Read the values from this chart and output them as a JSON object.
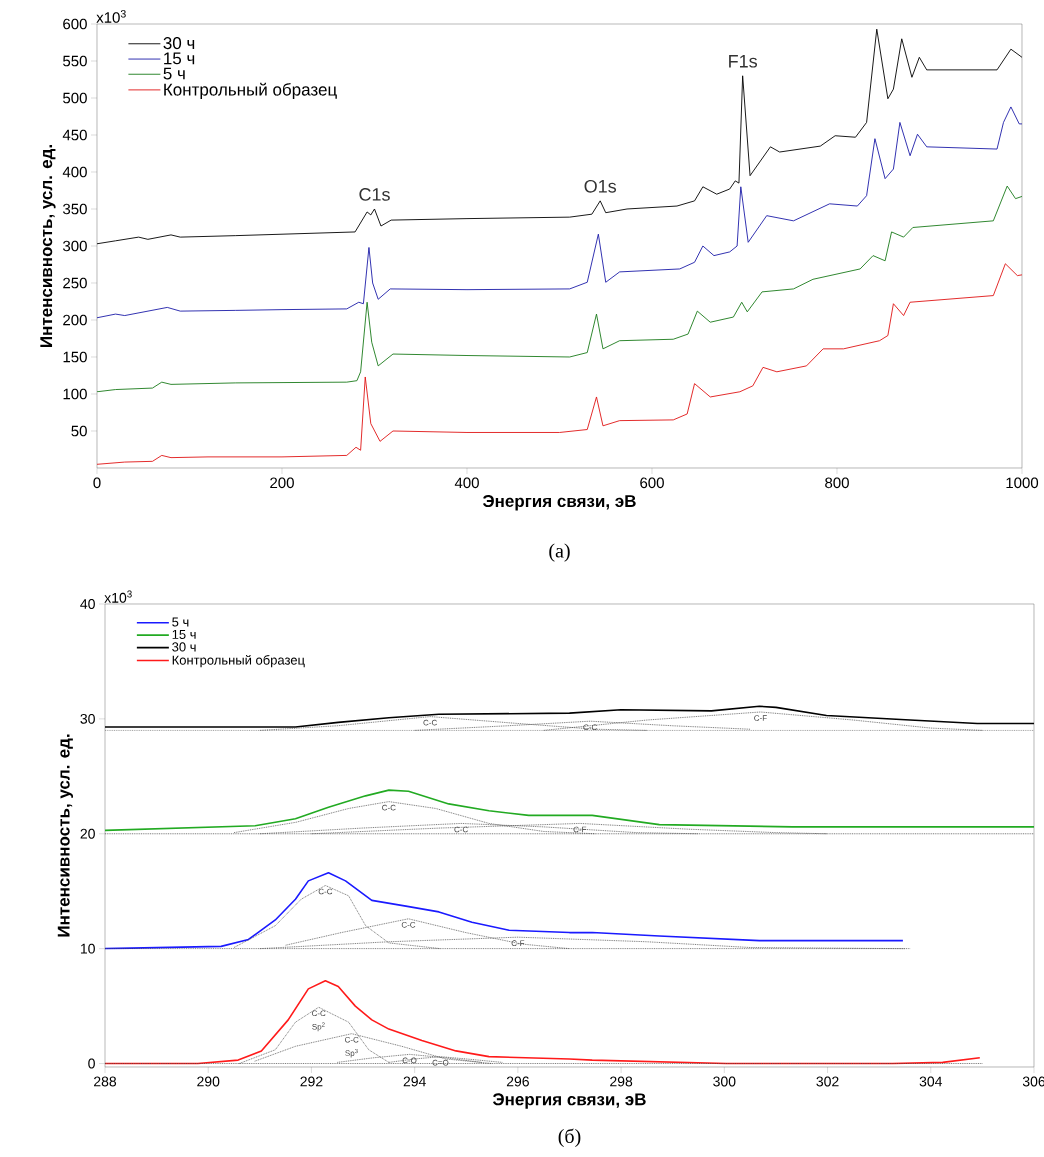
{
  "chart_data": [
    {
      "type": "line",
      "xlabel": "Энергия связи, эВ",
      "ylabel": "Интенсивность, усл. ед.",
      "xlim": [
        0,
        1000
      ],
      "ylim": [
        0,
        600
      ],
      "xticks": [
        0,
        200,
        400,
        600,
        800,
        1000
      ],
      "yticks": [
        50,
        100,
        150,
        200,
        250,
        300,
        350,
        400,
        450,
        500,
        550,
        600
      ],
      "legend": "top left",
      "line_style": "solid",
      "series": [
        {
          "name": "30 ч",
          "color": "#000000",
          "x": [
            0,
            20,
            45,
            55,
            80,
            90,
            150,
            279,
            292,
            296,
            300,
            307,
            318,
            400,
            511,
            535,
            544,
            550,
            573,
            627,
            646,
            655,
            670,
            684,
            690,
            694,
            698,
            706,
            728,
            738,
            782,
            798,
            820,
            832,
            843,
            855,
            861,
            870,
            881,
            889,
            897,
            973,
            988,
            1000
          ],
          "values": [
            303,
            307,
            312,
            309,
            315,
            312,
            314,
            319,
            346,
            342,
            350,
            327,
            335,
            337,
            339,
            343,
            361,
            345,
            350,
            354,
            361,
            380,
            370,
            377,
            388,
            385,
            530,
            395,
            434,
            427,
            435,
            449,
            447,
            467,
            593,
            499,
            512,
            580,
            528,
            555,
            538,
            538,
            566,
            555
          ]
        },
        {
          "name": "15 ч",
          "color": "#1c1ca8",
          "x": [
            0,
            20,
            30,
            76,
            90,
            150,
            200,
            270,
            283,
            288,
            294,
            298,
            304,
            317,
            400,
            511,
            530,
            542,
            550,
            565,
            630,
            646,
            655,
            667,
            684,
            692,
            696,
            704,
            724,
            753,
            792,
            822,
            832,
            841,
            852,
            861,
            868,
            879,
            887,
            897,
            973,
            980,
            988,
            997,
            1000
          ],
          "values": [
            203,
            208,
            206,
            217,
            212,
            213,
            214,
            215,
            224,
            222,
            298,
            250,
            228,
            242,
            241,
            242,
            251,
            316,
            251,
            265,
            269,
            278,
            300,
            287,
            292,
            300,
            380,
            305,
            341,
            334,
            357,
            354,
            368,
            445,
            391,
            404,
            467,
            422,
            451,
            434,
            431,
            467,
            488,
            465,
            465
          ]
        },
        {
          "name": "5 ч",
          "color": "#1a7a1a",
          "x": [
            0,
            20,
            60,
            70,
            80,
            150,
            270,
            281,
            285,
            292,
            297,
            304,
            320,
            400,
            511,
            530,
            540,
            547,
            565,
            623,
            639,
            649,
            663,
            688,
            697,
            703,
            719,
            753,
            774,
            825,
            839,
            852,
            859,
            872,
            882,
            969,
            984,
            993,
            1000
          ],
          "values": [
            103,
            106,
            108,
            116,
            113,
            115,
            116,
            118,
            130,
            224,
            170,
            138,
            154,
            152,
            150,
            156,
            208,
            161,
            172,
            174,
            181,
            212,
            197,
            204,
            224,
            211,
            238,
            242,
            255,
            269,
            287,
            280,
            319,
            312,
            325,
            334,
            381,
            364,
            367
          ]
        },
        {
          "name": "Контрольный образец",
          "color": "#e01414",
          "x": [
            0,
            30,
            60,
            70,
            80,
            120,
            200,
            270,
            280,
            285,
            290,
            296,
            306,
            320,
            400,
            500,
            530,
            540,
            547,
            565,
            623,
            638,
            646,
            663,
            695,
            709,
            720,
            735,
            767,
            785,
            807,
            846,
            855,
            861,
            872,
            879,
            969,
            982,
            995,
            1000
          ],
          "values": [
            5,
            8,
            9,
            17,
            14,
            15,
            15,
            17,
            28,
            24,
            123,
            60,
            36,
            50,
            48,
            48,
            52,
            96,
            57,
            64,
            65,
            73,
            114,
            96,
            103,
            111,
            136,
            130,
            138,
            161,
            161,
            172,
            179,
            222,
            206,
            224,
            233,
            276,
            260,
            261
          ]
        }
      ],
      "annotations": [
        {
          "text": "C1s",
          "x": 300,
          "y": 350
        },
        {
          "text": "O1s",
          "x": 544,
          "y": 361
        },
        {
          "text": "F1s",
          "x": 698,
          "y": 530
        },
        "x10$^{3}$",
        "(а)"
      ]
    },
    {
      "type": "line",
      "xlabel": "Энергия связи, эВ",
      "ylabel": "Интенсивность, усл. ед.",
      "xlim": [
        288,
        306
      ],
      "ylim": [
        -0.3,
        40
      ],
      "xticks": [
        288,
        290,
        292,
        294,
        296,
        298,
        300,
        302,
        304,
        306
      ],
      "yticks": [
        0,
        10,
        20,
        30,
        40
      ],
      "legend": "top left",
      "line_style": "solid",
      "series": [
        {
          "name": "5 ч",
          "color": "#1a1aff",
          "x": [
            288,
            290.25,
            290.78,
            291.3,
            291.69,
            291.94,
            292.33,
            292.66,
            293.17,
            293.83,
            294.47,
            295.11,
            295.83,
            297,
            297.44,
            298.74,
            300.68,
            303.46
          ],
          "values": [
            10.0,
            10.2,
            10.8,
            12.5,
            14.3,
            15.9,
            16.6,
            15.9,
            14.2,
            13.7,
            13.2,
            12.3,
            11.6,
            11.4,
            11.4,
            11.1,
            10.7,
            10.7
          ]
        },
        {
          "name": "15 ч",
          "color": "#22aa22",
          "x": [
            288,
            290.91,
            291.69,
            292.33,
            293.05,
            293.5,
            293.88,
            294.66,
            295.44,
            296.21,
            297,
            297.44,
            298.74,
            301.32,
            306
          ],
          "values": [
            20.3,
            20.7,
            21.3,
            22.3,
            23.3,
            23.8,
            23.7,
            22.6,
            22.0,
            21.6,
            21.6,
            21.6,
            20.8,
            20.6,
            20.6
          ]
        },
        {
          "name": "30 ч",
          "color": "#000000",
          "x": [
            288,
            291.69,
            292.52,
            293.5,
            294.47,
            297,
            298,
            299.75,
            300.68,
            301,
            301.98,
            303.6,
            304.9,
            306
          ],
          "values": [
            29.3,
            29.3,
            29.7,
            30.1,
            30.4,
            30.5,
            30.8,
            30.7,
            31.1,
            31.0,
            30.3,
            29.9,
            29.6,
            29.6
          ]
        },
        {
          "name": "Контрольный образец",
          "color": "#ff1a1a",
          "x": [
            288,
            289.8,
            290.58,
            291.03,
            291.55,
            291.94,
            292.27,
            292.52,
            292.85,
            293.17,
            293.5,
            294.14,
            294.8,
            295.44,
            297,
            297.44,
            300.04,
            303.26,
            304.23,
            304.95
          ],
          "values": [
            0.0,
            0.0,
            0.3,
            1.1,
            3.8,
            6.5,
            7.2,
            6.7,
            5.0,
            3.8,
            3.0,
            2.0,
            1.1,
            0.6,
            0.4,
            0.3,
            0.0,
            0.0,
            0.1,
            0.5
          ]
        },
        {
          "color": "#444444",
          "line_style": "dotted",
          "x": [
            288,
            303.6
          ],
          "values": [
            10,
            10
          ]
        },
        {
          "color": "#444444",
          "line_style": "dotted",
          "x": [
            290.5,
            291.3,
            291.8,
            292.27,
            292.72,
            293.05,
            293.5,
            294.5
          ],
          "values": [
            10.1,
            12.0,
            14.3,
            15.5,
            14.6,
            12.0,
            10.5,
            10.0
          ]
        },
        {
          "color": "#444444",
          "line_style": "dotted",
          "x": [
            291.5,
            292.58,
            293.88,
            294.99,
            296.08,
            297
          ],
          "values": [
            10.3,
            11.4,
            12.6,
            11.4,
            10.4,
            10.0
          ]
        },
        {
          "color": "#444444",
          "line_style": "dotted",
          "x": [
            291,
            293.5,
            296,
            298.5,
            300.5,
            303.5
          ],
          "values": [
            10.0,
            10.6,
            11.0,
            10.6,
            10.1,
            10.0
          ]
        },
        {
          "color": "#444444",
          "line_style": "dotted",
          "x": [
            288,
            306
          ],
          "values": [
            20,
            20
          ]
        },
        {
          "color": "#444444",
          "line_style": "dotted",
          "x": [
            290.5,
            291.7,
            292.72,
            293.5,
            294.41,
            295.44,
            296.5,
            297.5
          ],
          "values": [
            20.1,
            21.0,
            22.2,
            22.8,
            22.2,
            20.9,
            20.2,
            20.0
          ]
        },
        {
          "color": "#444444",
          "line_style": "dotted",
          "x": [
            291,
            293,
            294.9,
            296.5,
            298.3,
            299.5
          ],
          "values": [
            20.0,
            20.5,
            20.9,
            20.6,
            20.1,
            20.0
          ]
        },
        {
          "color": "#444444",
          "line_style": "dotted",
          "x": [
            292,
            294.5,
            297.2,
            299.3,
            301,
            302
          ],
          "values": [
            20.0,
            20.5,
            20.9,
            20.4,
            20.1,
            20.0
          ]
        },
        {
          "color": "#444444",
          "line_style": "dotted",
          "x": [
            288,
            306
          ],
          "values": [
            29,
            29
          ]
        },
        {
          "color": "#444444",
          "line_style": "dotted",
          "x": [
            291,
            292.5,
            294.3,
            296,
            297.5,
            298.5
          ],
          "values": [
            29.0,
            29.4,
            30.2,
            29.6,
            29.1,
            29.0
          ]
        },
        {
          "color": "#444444",
          "line_style": "dotted",
          "x": [
            294,
            295.8,
            297.4,
            299,
            300.5
          ],
          "values": [
            29.0,
            29.4,
            29.8,
            29.4,
            29.1
          ]
        },
        {
          "color": "#444444",
          "line_style": "dotted",
          "x": [
            296.5,
            298.5,
            300.7,
            302.5,
            304,
            305
          ],
          "values": [
            29.0,
            29.9,
            30.6,
            29.9,
            29.2,
            29.0
          ]
        },
        {
          "color": "#444444",
          "line_style": "dotted",
          "x": [
            288,
            305
          ],
          "values": [
            0,
            0
          ]
        },
        {
          "color": "#444444",
          "line_style": "dotted",
          "x": [
            290.6,
            291.3,
            291.69,
            292.14,
            292.72,
            293.11,
            293.5
          ],
          "values": [
            0.0,
            1.2,
            3.6,
            4.9,
            3.6,
            1.2,
            0.1
          ]
        },
        {
          "color": "#444444",
          "line_style": "dotted",
          "x": [
            290.9,
            291.69,
            292.78,
            293.75,
            294.6,
            295.5
          ],
          "values": [
            0.2,
            1.5,
            2.6,
            1.5,
            0.4,
            0.0
          ]
        },
        {
          "color": "#444444",
          "line_style": "dotted",
          "x": [
            292.5,
            293.2,
            293.9,
            294.6,
            295.3
          ],
          "values": [
            0.1,
            0.5,
            0.8,
            0.5,
            0.1
          ]
        },
        {
          "color": "#444444",
          "line_style": "dotted",
          "x": [
            293.5,
            294.0,
            294.5,
            295.0,
            295.7
          ],
          "values": [
            0.1,
            0.4,
            0.6,
            0.4,
            0.1
          ]
        }
      ],
      "annotations": [
        {
          "text": "C-C",
          "x": 292.14,
          "y": 4.9
        },
        {
          "text": "Sp$^{2}$",
          "x": 292.14,
          "y": 4.9
        },
        {
          "text": "C-C",
          "x": 292.78,
          "y": 2.6
        },
        {
          "text": "Sp$^{3}$",
          "x": 292.78,
          "y": 2.6
        },
        {
          "text": "C-O",
          "x": 293.9,
          "y": 0.8
        },
        {
          "text": "C=O",
          "x": 294.5,
          "y": 0.6
        },
        {
          "text": "C-C",
          "x": 292.27,
          "y": 15.5
        },
        {
          "text": "C-C",
          "x": 293.88,
          "y": 12.6
        },
        {
          "text": "C-F",
          "x": 296,
          "y": 11.0
        },
        {
          "text": "C-C",
          "x": 293.5,
          "y": 22.8
        },
        {
          "text": "C-C",
          "x": 294.9,
          "y": 20.9
        },
        {
          "text": "C-F",
          "x": 297.2,
          "y": 20.9
        },
        {
          "text": "C-C",
          "x": 294.3,
          "y": 30.2
        },
        {
          "text": "C-C",
          "x": 297.4,
          "y": 29.8
        },
        {
          "text": "C-F",
          "x": 300.7,
          "y": 30.6
        },
        "x10$^{3}$",
        "(б)"
      ]
    }
  ]
}
